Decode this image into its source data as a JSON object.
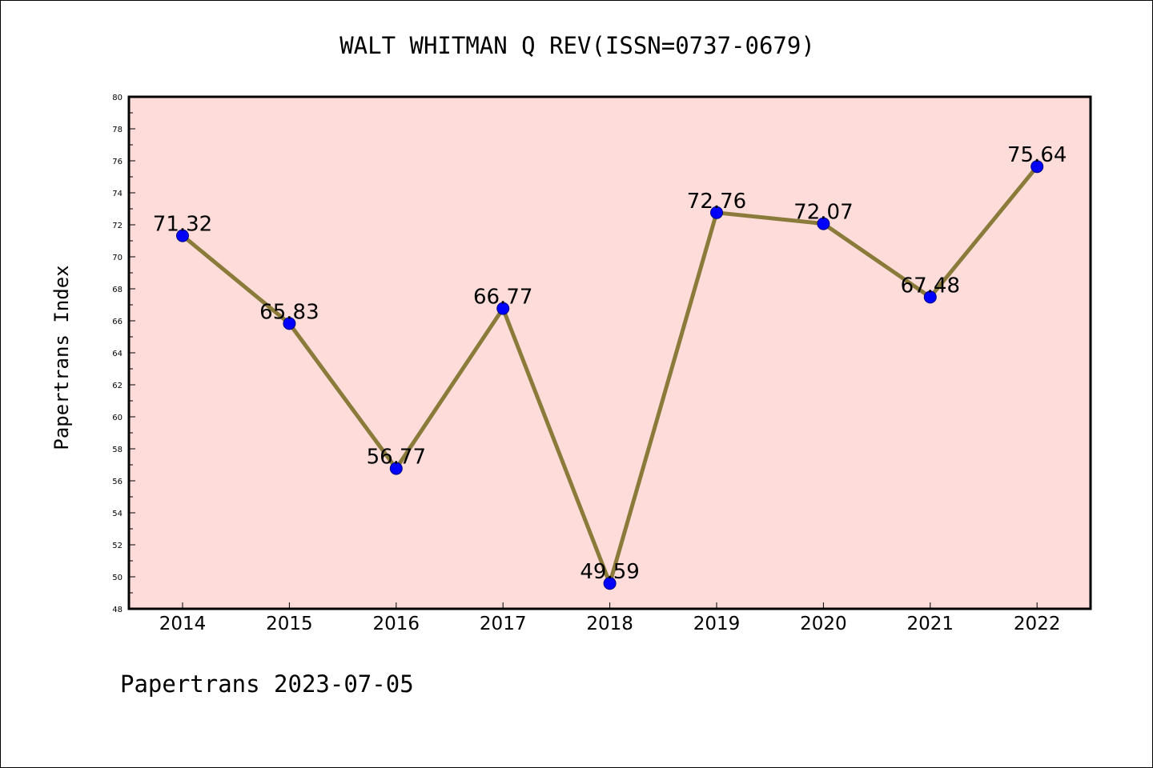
{
  "chart_data": {
    "type": "line",
    "title": "WALT WHITMAN Q REV(ISSN=0737-0679)",
    "ylabel": "Papertrans Index",
    "xlabel": "",
    "footer": "Papertrans 2023-07-05",
    "categories": [
      "2014",
      "2015",
      "2016",
      "2017",
      "2018",
      "2019",
      "2020",
      "2021",
      "2022"
    ],
    "values": [
      71.32,
      65.83,
      56.77,
      66.77,
      49.59,
      72.76,
      72.07,
      67.48,
      75.64
    ],
    "data_labels": [
      "71.32",
      "65.83",
      "56.77",
      "66.77",
      "49.59",
      "72.76",
      "72.07",
      "67.48",
      "75.64"
    ],
    "ylim": [
      48,
      80
    ],
    "yticks": [
      "48",
      "50",
      "52",
      "54",
      "56",
      "58",
      "60",
      "62",
      "64",
      "66",
      "68",
      "70",
      "72",
      "74",
      "76",
      "78",
      "80"
    ],
    "grid": false,
    "colors": {
      "plot_background": "#fddcda",
      "line": "#8b7b3a",
      "marker": "#0000ff",
      "marker_edge": "#000080"
    }
  }
}
